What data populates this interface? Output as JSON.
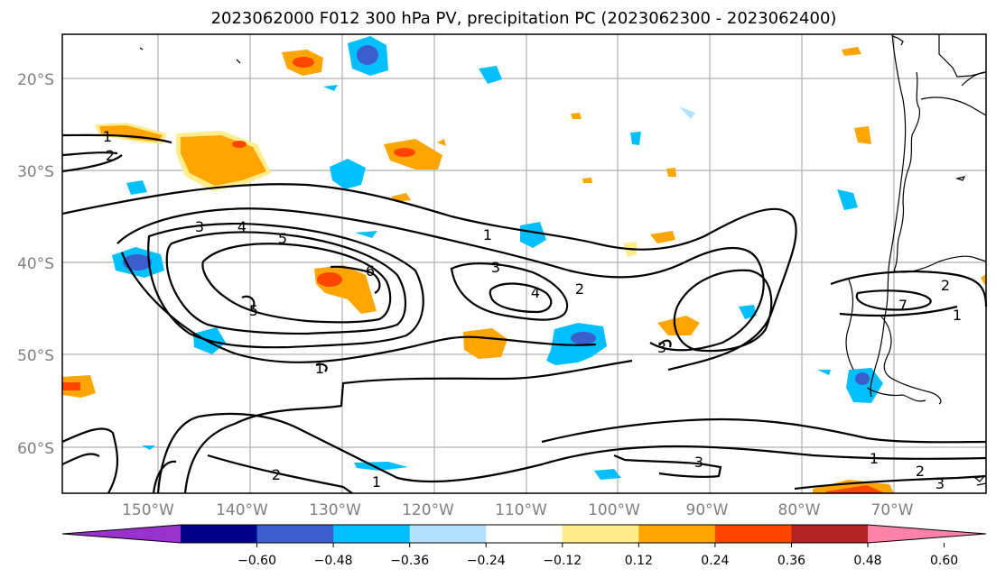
{
  "title": "2023062000 F012 300 hPa PV, precipitation PC (2023062300 - 2023062400)",
  "lat_labels": [
    "20°S",
    "30°S",
    "40°S",
    "50°S",
    "60°S"
  ],
  "lon_labels": [
    "150°W",
    "140°W",
    "130°W",
    "120°W",
    "110°W",
    "100°W",
    "90°W",
    "80°W",
    "70°W"
  ],
  "colorbar": {
    "colors": [
      "#9932cc",
      "#00008b",
      "#3a5fcd",
      "#00bfff",
      "#b0e2ff",
      "#ffffff",
      "#ffec8b",
      "#ffa500",
      "#ff4500",
      "#b22222",
      "#ff82ab"
    ],
    "tick_labels": [
      "−0.60",
      "−0.48",
      "−0.36",
      "−0.24",
      "−0.12",
      "0.12",
      "0.24",
      "0.36",
      "0.48",
      "0.60"
    ]
  },
  "contour_labels": {
    "c1_w": "1",
    "c2_w": "2",
    "c3_a": "3",
    "c4_a": "4",
    "c5_a": "5",
    "c6": "6",
    "c5_b": "5",
    "c1_b": "1",
    "c1_c": "1",
    "c3_b": "3",
    "c4_b": "4",
    "c2_b": "2",
    "c3_c": "3",
    "c7": "7",
    "c1_d": "1",
    "c2_c": "2",
    "c1_e": "1",
    "c2_d": "2",
    "c3_d": "3",
    "c3_e": "3",
    "c2_e": "2",
    "c1_f": "1"
  }
}
